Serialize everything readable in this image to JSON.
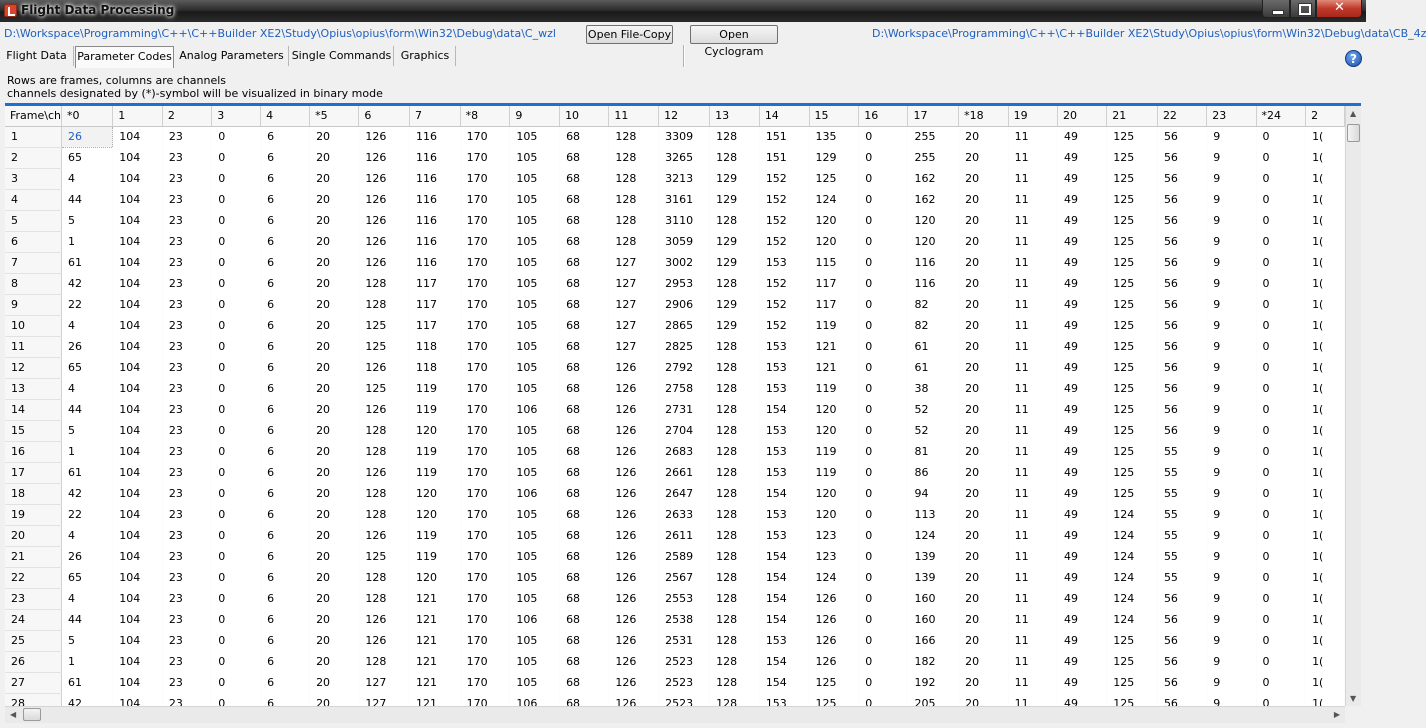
{
  "window": {
    "title": "Flight Data Processing"
  },
  "pathbar": {
    "left_path": "D:\\Workspace\\Programming\\C++\\C++Builder XE2\\Study\\Opius\\opius\\form\\Win32\\Debug\\data\\C_wzl",
    "open_file_copy": "Open File-Copy",
    "open_cyclogram": "Open Cyclogram",
    "right_path": "D:\\Workspace\\Programming\\C++\\C++Builder XE2\\Study\\Opius\\opius\\form\\Win32\\Debug\\data\\CB_4z"
  },
  "tabs": [
    "Flight Data",
    "Parameter Codes",
    "Analog Parameters",
    "Single Commands",
    "Graphics"
  ],
  "active_tab": 1,
  "help_icon": "?",
  "info": {
    "line1": "Rows are frames, columns are channels",
    "line2": "channels designated by (*)-symbol will be visualized in binary mode"
  },
  "grid": {
    "corner": "Frame\\ch",
    "columns": [
      "*0",
      "1",
      "2",
      "3",
      "4",
      "*5",
      "6",
      "7",
      "*8",
      "9",
      "10",
      "11",
      "12",
      "13",
      "14",
      "15",
      "16",
      "17",
      "*18",
      "19",
      "20",
      "21",
      "22",
      "23",
      "*24",
      "2"
    ],
    "rows": [
      [
        "1",
        "26",
        "104",
        "23",
        "0",
        "6",
        "20",
        "126",
        "116",
        "170",
        "105",
        "68",
        "128",
        "3309",
        "128",
        "151",
        "135",
        "0",
        "255",
        "20",
        "11",
        "49",
        "125",
        "56",
        "9",
        "0",
        "1("
      ],
      [
        "2",
        "65",
        "104",
        "23",
        "0",
        "6",
        "20",
        "126",
        "116",
        "170",
        "105",
        "68",
        "128",
        "3265",
        "128",
        "151",
        "129",
        "0",
        "255",
        "20",
        "11",
        "49",
        "125",
        "56",
        "9",
        "0",
        "1("
      ],
      [
        "3",
        "4",
        "104",
        "23",
        "0",
        "6",
        "20",
        "126",
        "116",
        "170",
        "105",
        "68",
        "128",
        "3213",
        "129",
        "152",
        "125",
        "0",
        "162",
        "20",
        "11",
        "49",
        "125",
        "56",
        "9",
        "0",
        "1("
      ],
      [
        "4",
        "44",
        "104",
        "23",
        "0",
        "6",
        "20",
        "126",
        "116",
        "170",
        "105",
        "68",
        "128",
        "3161",
        "129",
        "152",
        "124",
        "0",
        "162",
        "20",
        "11",
        "49",
        "125",
        "56",
        "9",
        "0",
        "1("
      ],
      [
        "5",
        "5",
        "104",
        "23",
        "0",
        "6",
        "20",
        "126",
        "116",
        "170",
        "105",
        "68",
        "128",
        "3110",
        "128",
        "152",
        "120",
        "0",
        "120",
        "20",
        "11",
        "49",
        "125",
        "56",
        "9",
        "0",
        "1("
      ],
      [
        "6",
        "1",
        "104",
        "23",
        "0",
        "6",
        "20",
        "126",
        "116",
        "170",
        "105",
        "68",
        "128",
        "3059",
        "129",
        "152",
        "120",
        "0",
        "120",
        "20",
        "11",
        "49",
        "125",
        "56",
        "9",
        "0",
        "1("
      ],
      [
        "7",
        "61",
        "104",
        "23",
        "0",
        "6",
        "20",
        "126",
        "116",
        "170",
        "105",
        "68",
        "127",
        "3002",
        "129",
        "153",
        "115",
        "0",
        "116",
        "20",
        "11",
        "49",
        "125",
        "56",
        "9",
        "0",
        "1("
      ],
      [
        "8",
        "42",
        "104",
        "23",
        "0",
        "6",
        "20",
        "128",
        "117",
        "170",
        "105",
        "68",
        "127",
        "2953",
        "128",
        "152",
        "117",
        "0",
        "116",
        "20",
        "11",
        "49",
        "125",
        "56",
        "9",
        "0",
        "1("
      ],
      [
        "9",
        "22",
        "104",
        "23",
        "0",
        "6",
        "20",
        "128",
        "117",
        "170",
        "105",
        "68",
        "127",
        "2906",
        "129",
        "152",
        "117",
        "0",
        "82",
        "20",
        "11",
        "49",
        "125",
        "56",
        "9",
        "0",
        "1("
      ],
      [
        "10",
        "4",
        "104",
        "23",
        "0",
        "6",
        "20",
        "125",
        "117",
        "170",
        "105",
        "68",
        "127",
        "2865",
        "129",
        "152",
        "119",
        "0",
        "82",
        "20",
        "11",
        "49",
        "125",
        "56",
        "9",
        "0",
        "1("
      ],
      [
        "11",
        "26",
        "104",
        "23",
        "0",
        "6",
        "20",
        "125",
        "118",
        "170",
        "105",
        "68",
        "127",
        "2825",
        "128",
        "153",
        "121",
        "0",
        "61",
        "20",
        "11",
        "49",
        "125",
        "56",
        "9",
        "0",
        "1("
      ],
      [
        "12",
        "65",
        "104",
        "23",
        "0",
        "6",
        "20",
        "126",
        "118",
        "170",
        "105",
        "68",
        "126",
        "2792",
        "128",
        "153",
        "121",
        "0",
        "61",
        "20",
        "11",
        "49",
        "125",
        "56",
        "9",
        "0",
        "1("
      ],
      [
        "13",
        "4",
        "104",
        "23",
        "0",
        "6",
        "20",
        "125",
        "119",
        "170",
        "105",
        "68",
        "126",
        "2758",
        "128",
        "153",
        "119",
        "0",
        "38",
        "20",
        "11",
        "49",
        "125",
        "56",
        "9",
        "0",
        "1("
      ],
      [
        "14",
        "44",
        "104",
        "23",
        "0",
        "6",
        "20",
        "126",
        "119",
        "170",
        "106",
        "68",
        "126",
        "2731",
        "128",
        "154",
        "120",
        "0",
        "52",
        "20",
        "11",
        "49",
        "125",
        "56",
        "9",
        "0",
        "1("
      ],
      [
        "15",
        "5",
        "104",
        "23",
        "0",
        "6",
        "20",
        "128",
        "120",
        "170",
        "105",
        "68",
        "126",
        "2704",
        "128",
        "153",
        "120",
        "0",
        "52",
        "20",
        "11",
        "49",
        "125",
        "56",
        "9",
        "0",
        "1("
      ],
      [
        "16",
        "1",
        "104",
        "23",
        "0",
        "6",
        "20",
        "128",
        "119",
        "170",
        "105",
        "68",
        "126",
        "2683",
        "128",
        "153",
        "119",
        "0",
        "81",
        "20",
        "11",
        "49",
        "125",
        "55",
        "9",
        "0",
        "1("
      ],
      [
        "17",
        "61",
        "104",
        "23",
        "0",
        "6",
        "20",
        "126",
        "119",
        "170",
        "105",
        "68",
        "126",
        "2661",
        "128",
        "153",
        "119",
        "0",
        "86",
        "20",
        "11",
        "49",
        "125",
        "55",
        "9",
        "0",
        "1("
      ],
      [
        "18",
        "42",
        "104",
        "23",
        "0",
        "6",
        "20",
        "128",
        "120",
        "170",
        "106",
        "68",
        "126",
        "2647",
        "128",
        "154",
        "120",
        "0",
        "94",
        "20",
        "11",
        "49",
        "125",
        "55",
        "9",
        "0",
        "1("
      ],
      [
        "19",
        "22",
        "104",
        "23",
        "0",
        "6",
        "20",
        "128",
        "120",
        "170",
        "105",
        "68",
        "126",
        "2633",
        "128",
        "153",
        "120",
        "0",
        "113",
        "20",
        "11",
        "49",
        "124",
        "55",
        "9",
        "0",
        "1("
      ],
      [
        "20",
        "4",
        "104",
        "23",
        "0",
        "6",
        "20",
        "126",
        "119",
        "170",
        "105",
        "68",
        "126",
        "2611",
        "128",
        "153",
        "123",
        "0",
        "124",
        "20",
        "11",
        "49",
        "124",
        "55",
        "9",
        "0",
        "1("
      ],
      [
        "21",
        "26",
        "104",
        "23",
        "0",
        "6",
        "20",
        "125",
        "119",
        "170",
        "105",
        "68",
        "126",
        "2589",
        "128",
        "154",
        "123",
        "0",
        "139",
        "20",
        "11",
        "49",
        "124",
        "55",
        "9",
        "0",
        "1("
      ],
      [
        "22",
        "65",
        "104",
        "23",
        "0",
        "6",
        "20",
        "128",
        "120",
        "170",
        "105",
        "68",
        "126",
        "2567",
        "128",
        "154",
        "124",
        "0",
        "139",
        "20",
        "11",
        "49",
        "124",
        "55",
        "9",
        "0",
        "1("
      ],
      [
        "23",
        "4",
        "104",
        "23",
        "0",
        "6",
        "20",
        "128",
        "121",
        "170",
        "105",
        "68",
        "126",
        "2553",
        "128",
        "154",
        "126",
        "0",
        "160",
        "20",
        "11",
        "49",
        "124",
        "56",
        "9",
        "0",
        "1("
      ],
      [
        "24",
        "44",
        "104",
        "23",
        "0",
        "6",
        "20",
        "126",
        "121",
        "170",
        "106",
        "68",
        "126",
        "2538",
        "128",
        "154",
        "126",
        "0",
        "160",
        "20",
        "11",
        "49",
        "124",
        "56",
        "9",
        "0",
        "1("
      ],
      [
        "25",
        "5",
        "104",
        "23",
        "0",
        "6",
        "20",
        "126",
        "121",
        "170",
        "105",
        "68",
        "126",
        "2531",
        "128",
        "153",
        "126",
        "0",
        "166",
        "20",
        "11",
        "49",
        "125",
        "56",
        "9",
        "0",
        "1("
      ],
      [
        "26",
        "1",
        "104",
        "23",
        "0",
        "6",
        "20",
        "128",
        "121",
        "170",
        "105",
        "68",
        "126",
        "2523",
        "128",
        "154",
        "126",
        "0",
        "182",
        "20",
        "11",
        "49",
        "125",
        "56",
        "9",
        "0",
        "1("
      ],
      [
        "27",
        "61",
        "104",
        "23",
        "0",
        "6",
        "20",
        "127",
        "121",
        "170",
        "105",
        "68",
        "126",
        "2523",
        "128",
        "154",
        "125",
        "0",
        "192",
        "20",
        "11",
        "49",
        "125",
        "56",
        "9",
        "0",
        "1("
      ],
      [
        "28",
        "42",
        "104",
        "23",
        "0",
        "6",
        "20",
        "127",
        "121",
        "170",
        "106",
        "68",
        "126",
        "2523",
        "128",
        "153",
        "125",
        "0",
        "205",
        "20",
        "11",
        "49",
        "125",
        "56",
        "9",
        "0",
        "1("
      ]
    ]
  }
}
